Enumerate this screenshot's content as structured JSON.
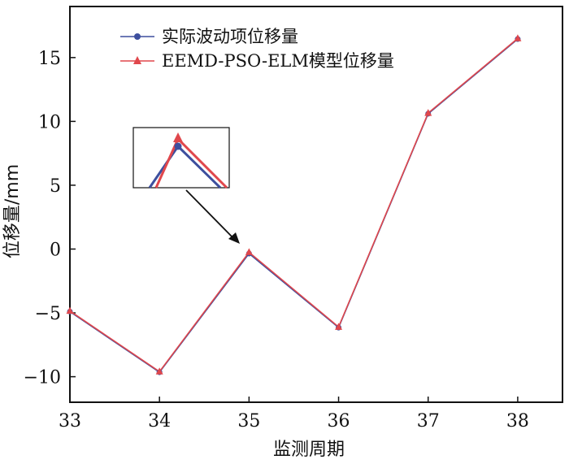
{
  "chart_data": {
    "type": "line",
    "xlabel": "监测周期",
    "ylabel": "位移量/mm",
    "x": [
      33,
      34,
      35,
      36,
      37,
      38
    ],
    "xlim": [
      33,
      38.5
    ],
    "ylim": [
      -12,
      19
    ],
    "xticks": [
      33,
      34,
      35,
      36,
      37,
      38
    ],
    "yticks": [
      15,
      10,
      5,
      0,
      -5,
      -10
    ],
    "ytick_labels": [
      "15",
      "10",
      "5",
      "0",
      "−5",
      "−10"
    ],
    "grid": false,
    "legend_position": "top-left",
    "series": [
      {
        "name": "实际波动项位移量",
        "values": [
          -4.9,
          -9.65,
          -0.35,
          -6.15,
          10.6,
          16.45
        ],
        "color": "#3d4f9e",
        "marker": "circle"
      },
      {
        "name": "EEMD-PSO-ELM模型位移量",
        "values": [
          -4.85,
          -9.6,
          -0.25,
          -6.1,
          10.65,
          16.5
        ],
        "color": "#e0474c",
        "marker": "triangle"
      }
    ],
    "annotation": {
      "type": "inset-zoom",
      "target_x": 35,
      "arrow_color": "#111111"
    }
  }
}
